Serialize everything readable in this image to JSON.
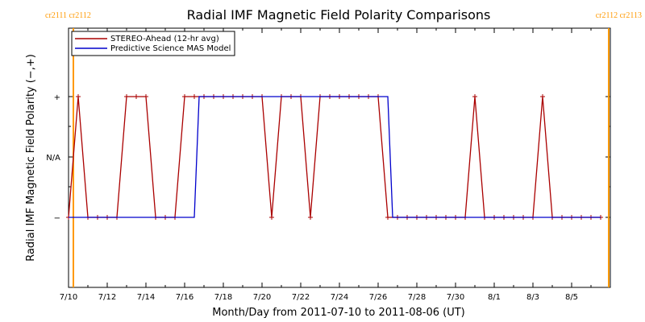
{
  "chart_data": {
    "type": "line",
    "title": "Radial IMF Magnetic Field Polarity Comparisons",
    "xlabel": "Month/Day from 2011-07-10 to 2011-08-06 (UT)",
    "ylabel": "Radial IMF Magnetic Field Polarity (−,+)",
    "x_unit": "date",
    "xlim": [
      "2011-07-10",
      "2011-08-07"
    ],
    "x_tick_dates": [
      "2011-07-10",
      "2011-07-12",
      "2011-07-14",
      "2011-07-16",
      "2011-07-18",
      "2011-07-20",
      "2011-07-22",
      "2011-07-24",
      "2011-07-26",
      "2011-07-28",
      "2011-07-30",
      "2011-08-01",
      "2011-08-03",
      "2011-08-05"
    ],
    "x_tick_labels": [
      "7/10",
      "7/12",
      "7/14",
      "7/16",
      "7/18",
      "7/20",
      "7/22",
      "7/24",
      "7/26",
      "7/28",
      "7/30",
      "8/1",
      "8/3",
      "8/5"
    ],
    "y_categories": [
      "−",
      "N/A",
      "+"
    ],
    "y_tick_labels": [
      "+",
      "N/A",
      "−"
    ],
    "carrington_markers": [
      {
        "date": "2011-07-10T06:00",
        "label": "cr2111 cr2112",
        "position": "left"
      },
      {
        "date": "2011-08-06T22:00",
        "label": "cr2112 cr2113",
        "position": "right"
      }
    ],
    "legend": {
      "placement": "top-left"
    },
    "colors": {
      "stereo": "#aa0000",
      "model": "#0000cc",
      "carrington": "#ff9900"
    },
    "series": [
      {
        "name": "STEREO-Ahead (12-hr avg)",
        "color": "#aa0000",
        "markers": "plus",
        "points": [
          {
            "x": "2011-07-10T00:00",
            "y": "−"
          },
          {
            "x": "2011-07-10T12:00",
            "y": "+"
          },
          {
            "x": "2011-07-11T00:00",
            "y": "−"
          },
          {
            "x": "2011-07-11T12:00",
            "y": "−"
          },
          {
            "x": "2011-07-12T00:00",
            "y": "−"
          },
          {
            "x": "2011-07-12T12:00",
            "y": "−"
          },
          {
            "x": "2011-07-13T00:00",
            "y": "+"
          },
          {
            "x": "2011-07-13T12:00",
            "y": "+"
          },
          {
            "x": "2011-07-14T00:00",
            "y": "+"
          },
          {
            "x": "2011-07-14T12:00",
            "y": "−"
          },
          {
            "x": "2011-07-15T00:00",
            "y": "−"
          },
          {
            "x": "2011-07-15T12:00",
            "y": "−"
          },
          {
            "x": "2011-07-16T00:00",
            "y": "+"
          },
          {
            "x": "2011-07-16T12:00",
            "y": "+"
          },
          {
            "x": "2011-07-17T00:00",
            "y": "+"
          },
          {
            "x": "2011-07-17T12:00",
            "y": "+"
          },
          {
            "x": "2011-07-18T00:00",
            "y": "+"
          },
          {
            "x": "2011-07-18T12:00",
            "y": "+"
          },
          {
            "x": "2011-07-19T00:00",
            "y": "+"
          },
          {
            "x": "2011-07-19T12:00",
            "y": "+"
          },
          {
            "x": "2011-07-20T00:00",
            "y": "+"
          },
          {
            "x": "2011-07-20T12:00",
            "y": "−"
          },
          {
            "x": "2011-07-21T00:00",
            "y": "+"
          },
          {
            "x": "2011-07-21T12:00",
            "y": "+"
          },
          {
            "x": "2011-07-22T00:00",
            "y": "+"
          },
          {
            "x": "2011-07-22T12:00",
            "y": "−"
          },
          {
            "x": "2011-07-23T00:00",
            "y": "+"
          },
          {
            "x": "2011-07-23T12:00",
            "y": "+"
          },
          {
            "x": "2011-07-24T00:00",
            "y": "+"
          },
          {
            "x": "2011-07-24T12:00",
            "y": "+"
          },
          {
            "x": "2011-07-25T00:00",
            "y": "+"
          },
          {
            "x": "2011-07-25T12:00",
            "y": "+"
          },
          {
            "x": "2011-07-26T00:00",
            "y": "+"
          },
          {
            "x": "2011-07-26T12:00",
            "y": "−"
          },
          {
            "x": "2011-07-27T00:00",
            "y": "−"
          },
          {
            "x": "2011-07-27T12:00",
            "y": "−"
          },
          {
            "x": "2011-07-28T00:00",
            "y": "−"
          },
          {
            "x": "2011-07-28T12:00",
            "y": "−"
          },
          {
            "x": "2011-07-29T00:00",
            "y": "−"
          },
          {
            "x": "2011-07-29T12:00",
            "y": "−"
          },
          {
            "x": "2011-07-30T00:00",
            "y": "−"
          },
          {
            "x": "2011-07-30T12:00",
            "y": "−"
          },
          {
            "x": "2011-07-31T00:00",
            "y": "+"
          },
          {
            "x": "2011-07-31T12:00",
            "y": "−"
          },
          {
            "x": "2011-08-01T00:00",
            "y": "−"
          },
          {
            "x": "2011-08-01T12:00",
            "y": "−"
          },
          {
            "x": "2011-08-02T00:00",
            "y": "−"
          },
          {
            "x": "2011-08-02T12:00",
            "y": "−"
          },
          {
            "x": "2011-08-03T00:00",
            "y": "−"
          },
          {
            "x": "2011-08-03T12:00",
            "y": "+"
          },
          {
            "x": "2011-08-04T00:00",
            "y": "−"
          },
          {
            "x": "2011-08-04T12:00",
            "y": "−"
          },
          {
            "x": "2011-08-05T00:00",
            "y": "−"
          },
          {
            "x": "2011-08-05T12:00",
            "y": "−"
          },
          {
            "x": "2011-08-06T00:00",
            "y": "−"
          },
          {
            "x": "2011-08-06T12:00",
            "y": "−"
          }
        ]
      },
      {
        "name": "Predictive Science MAS Model",
        "color": "#0000cc",
        "markers": "none",
        "points": [
          {
            "x": "2011-07-10T00:00",
            "y": "−"
          },
          {
            "x": "2011-07-16T12:00",
            "y": "−"
          },
          {
            "x": "2011-07-16T18:00",
            "y": "+"
          },
          {
            "x": "2011-07-26T12:00",
            "y": "+"
          },
          {
            "x": "2011-07-26T18:00",
            "y": "−"
          },
          {
            "x": "2011-08-06T12:00",
            "y": "−"
          }
        ]
      }
    ]
  }
}
